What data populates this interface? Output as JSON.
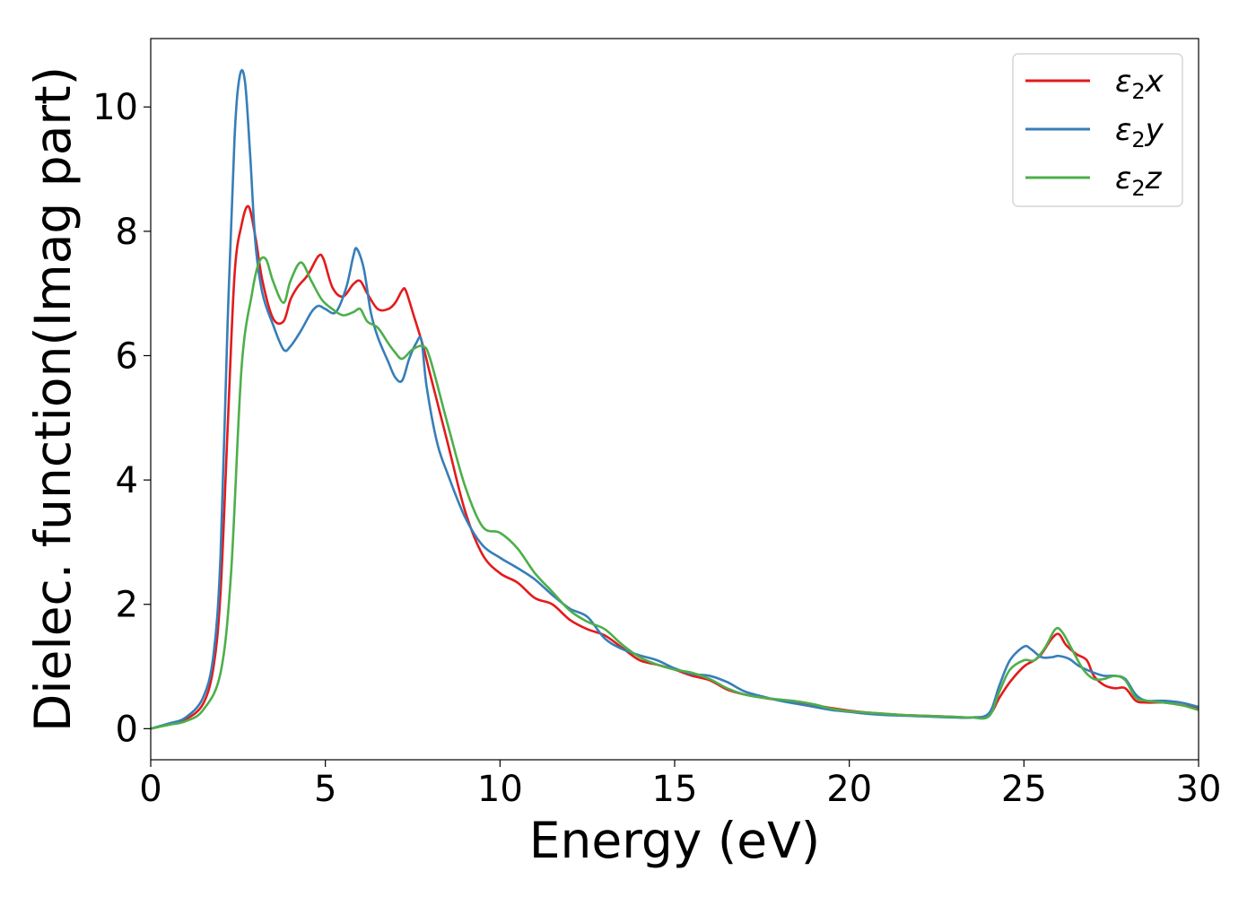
{
  "chart_data": {
    "type": "line",
    "title": "",
    "xlabel": "Energy (eV)",
    "ylabel": "Dielec. function(Imag part)",
    "xlim": [
      0,
      30
    ],
    "ylim": [
      -0.5,
      11.1
    ],
    "xticks": [
      0,
      5,
      10,
      15,
      20,
      25,
      30
    ],
    "xtick_labels": [
      "0",
      "5",
      "10",
      "15",
      "20",
      "25",
      "30"
    ],
    "yticks": [
      0,
      2,
      4,
      6,
      8,
      10
    ],
    "ytick_labels": [
      "0",
      "2",
      "4",
      "6",
      "8",
      "10"
    ],
    "grid": false,
    "legend_position": "top-right",
    "series": [
      {
        "name": "ε2x",
        "legend": {
          "base": "ε",
          "sub": "2",
          "tail": "x"
        },
        "color": "#e41a1c",
        "x": [
          0,
          0.5,
          1,
          1.5,
          1.8,
          2,
          2.2,
          2.4,
          2.6,
          2.8,
          3.0,
          3.2,
          3.5,
          3.8,
          4.0,
          4.2,
          4.5,
          4.8,
          4.95,
          5.2,
          5.5,
          5.8,
          6.0,
          6.2,
          6.5,
          6.8,
          7.0,
          7.2,
          7.3,
          7.5,
          7.8,
          8.0,
          8.5,
          9.0,
          9.5,
          10.0,
          10.5,
          11.0,
          11.5,
          12.0,
          12.5,
          13.0,
          13.5,
          14.0,
          14.5,
          15.0,
          15.5,
          16.0,
          16.5,
          17.0,
          17.5,
          18.0,
          18.5,
          19.0,
          19.5,
          20.0,
          20.5,
          21.0,
          21.5,
          22.0,
          22.5,
          23.0,
          23.5,
          24.0,
          24.3,
          24.6,
          25.0,
          25.3,
          25.5,
          25.8,
          26.0,
          26.2,
          26.5,
          26.8,
          27.0,
          27.3,
          27.6,
          27.9,
          28.2,
          28.5,
          29.0,
          29.5,
          30.0
        ],
        "y": [
          0,
          0.07,
          0.15,
          0.4,
          1.0,
          2.2,
          4.8,
          7.3,
          8.1,
          8.4,
          7.9,
          7.2,
          6.6,
          6.55,
          6.9,
          7.1,
          7.3,
          7.6,
          7.55,
          7.1,
          6.95,
          7.15,
          7.2,
          7.0,
          6.75,
          6.75,
          6.85,
          7.05,
          7.05,
          6.7,
          6.15,
          5.7,
          4.6,
          3.5,
          2.8,
          2.5,
          2.35,
          2.1,
          2.0,
          1.75,
          1.6,
          1.5,
          1.3,
          1.1,
          1.03,
          0.95,
          0.85,
          0.78,
          0.63,
          0.55,
          0.5,
          0.46,
          0.42,
          0.38,
          0.33,
          0.29,
          0.26,
          0.24,
          0.22,
          0.21,
          0.2,
          0.19,
          0.18,
          0.22,
          0.5,
          0.75,
          1.0,
          1.1,
          1.2,
          1.45,
          1.52,
          1.35,
          1.2,
          1.1,
          0.85,
          0.7,
          0.65,
          0.65,
          0.45,
          0.42,
          0.42,
          0.38,
          0.33
        ]
      },
      {
        "name": "ε2y",
        "legend": {
          "base": "ε",
          "sub": "2",
          "tail": "y"
        },
        "color": "#377eb8",
        "x": [
          0,
          0.5,
          1,
          1.5,
          1.8,
          2,
          2.2,
          2.4,
          2.55,
          2.7,
          2.85,
          3.0,
          3.2,
          3.5,
          3.8,
          4.0,
          4.3,
          4.6,
          4.8,
          5.0,
          5.3,
          5.6,
          5.8,
          5.9,
          6.1,
          6.3,
          6.5,
          6.8,
          7.0,
          7.2,
          7.4,
          7.6,
          7.75,
          7.9,
          8.2,
          8.5,
          9.0,
          9.5,
          10.0,
          10.3,
          10.6,
          11.0,
          11.5,
          12.0,
          12.5,
          13.0,
          13.5,
          14.0,
          14.5,
          15.0,
          15.5,
          16.0,
          16.5,
          17.0,
          17.5,
          18.0,
          18.5,
          19.0,
          19.5,
          20.0,
          20.5,
          21.0,
          21.5,
          22.0,
          22.5,
          23.0,
          23.5,
          24.0,
          24.3,
          24.6,
          25.0,
          25.2,
          25.5,
          25.8,
          26.0,
          26.3,
          26.6,
          27.0,
          27.3,
          27.6,
          27.9,
          28.2,
          28.5,
          29.0,
          29.5,
          30.0
        ],
        "y": [
          0,
          0.08,
          0.18,
          0.5,
          1.2,
          2.8,
          6.5,
          9.5,
          10.5,
          10.4,
          9.2,
          7.8,
          7.0,
          6.5,
          6.1,
          6.15,
          6.4,
          6.7,
          6.8,
          6.75,
          6.7,
          7.1,
          7.6,
          7.72,
          7.4,
          6.7,
          6.3,
          5.9,
          5.65,
          5.6,
          5.95,
          6.2,
          6.25,
          5.5,
          4.6,
          4.1,
          3.4,
          2.95,
          2.75,
          2.65,
          2.55,
          2.4,
          2.15,
          1.93,
          1.8,
          1.45,
          1.28,
          1.18,
          1.1,
          0.97,
          0.88,
          0.85,
          0.75,
          0.6,
          0.52,
          0.45,
          0.4,
          0.35,
          0.3,
          0.27,
          0.24,
          0.22,
          0.21,
          0.2,
          0.19,
          0.18,
          0.18,
          0.25,
          0.7,
          1.1,
          1.32,
          1.28,
          1.15,
          1.15,
          1.17,
          1.12,
          1.0,
          0.9,
          0.85,
          0.85,
          0.8,
          0.55,
          0.45,
          0.45,
          0.42,
          0.35
        ]
      },
      {
        "name": "ε2z",
        "legend": {
          "base": "ε",
          "sub": "2",
          "tail": "z"
        },
        "color": "#4daf4a",
        "x": [
          0,
          0.5,
          1,
          1.5,
          2,
          2.3,
          2.6,
          2.9,
          3.1,
          3.3,
          3.5,
          3.8,
          4.0,
          4.3,
          4.6,
          4.9,
          5.2,
          5.5,
          5.8,
          6.0,
          6.2,
          6.5,
          6.8,
          7.0,
          7.2,
          7.5,
          7.8,
          8.0,
          8.5,
          9.0,
          9.5,
          10.0,
          10.5,
          11.0,
          11.5,
          12.0,
          12.5,
          13.0,
          13.5,
          14.0,
          14.5,
          15.0,
          15.5,
          16.0,
          16.5,
          17.0,
          17.5,
          18.0,
          18.5,
          19.0,
          19.5,
          20.0,
          20.5,
          21.0,
          21.5,
          22.0,
          22.5,
          23.0,
          23.5,
          24.0,
          24.3,
          24.6,
          25.0,
          25.3,
          25.6,
          25.9,
          26.1,
          26.4,
          26.7,
          27.0,
          27.3,
          27.6,
          27.9,
          28.2,
          28.5,
          29.0,
          29.5,
          30.0
        ],
        "y": [
          0,
          0.06,
          0.12,
          0.3,
          0.9,
          2.5,
          5.8,
          7.0,
          7.5,
          7.55,
          7.2,
          6.85,
          7.2,
          7.5,
          7.2,
          6.9,
          6.75,
          6.65,
          6.7,
          6.75,
          6.55,
          6.45,
          6.2,
          6.05,
          5.95,
          6.1,
          6.15,
          5.95,
          4.9,
          3.9,
          3.25,
          3.15,
          2.9,
          2.5,
          2.2,
          1.9,
          1.72,
          1.6,
          1.35,
          1.15,
          1.03,
          0.95,
          0.9,
          0.8,
          0.65,
          0.55,
          0.5,
          0.47,
          0.44,
          0.39,
          0.32,
          0.28,
          0.26,
          0.24,
          0.22,
          0.21,
          0.2,
          0.19,
          0.18,
          0.2,
          0.6,
          0.95,
          1.1,
          1.1,
          1.3,
          1.6,
          1.55,
          1.25,
          0.95,
          0.8,
          0.8,
          0.85,
          0.78,
          0.5,
          0.45,
          0.42,
          0.38,
          0.3
        ]
      }
    ]
  }
}
